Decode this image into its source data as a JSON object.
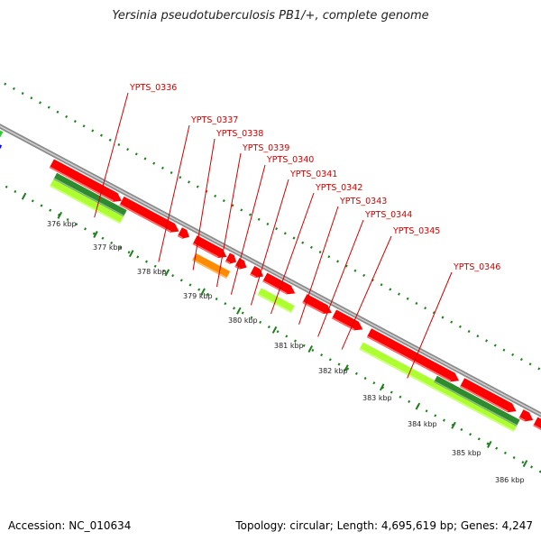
{
  "title": "Yersinia pseudotuberculosis PB1/+, complete genome",
  "footer": {
    "accession": "Accession: NC_010634",
    "summary": "Topology: circular; Length: 4,695,619 bp; Genes: 4,247"
  },
  "gene_labels": [
    "YPTS_0336",
    "YPTS_0337",
    "YPTS_0338",
    "YPTS_0339",
    "YPTS_0340",
    "YPTS_0341",
    "YPTS_0342",
    "YPTS_0343",
    "YPTS_0344",
    "YPTS_0345",
    "YPTS_0346"
  ],
  "kbp_ticks": [
    "376 kbp",
    "377 kbp",
    "378 kbp",
    "379 kbp",
    "380 kbp",
    "381 kbp",
    "382 kbp",
    "383 kbp",
    "384 kbp",
    "385 kbp",
    "386 kbp"
  ],
  "colors": {
    "backbone": "#8c8c8c",
    "cds": "#ff0000",
    "gene_lightgreen": "#adff2f",
    "gene_darkgreen": "#2e8b2e",
    "blue_feature": "#0000ff",
    "green_feature": "#33cc33",
    "orange_feature": "#ff8c00",
    "label_text": "#d40000",
    "tick_green": "#1e7f1e"
  }
}
